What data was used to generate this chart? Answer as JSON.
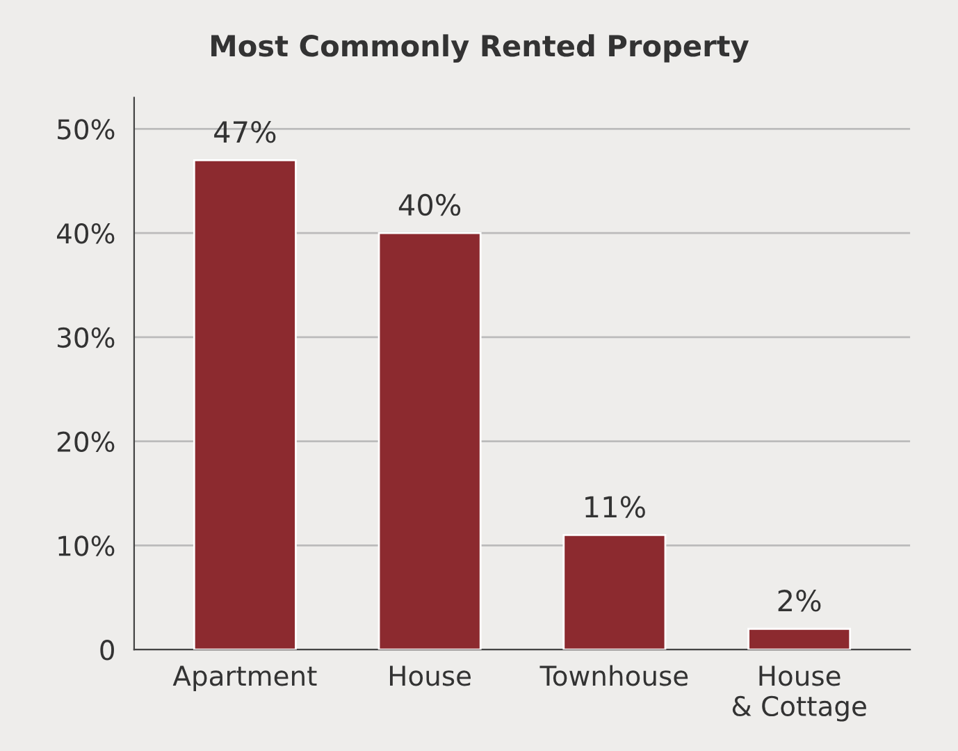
{
  "chart_data": {
    "type": "bar",
    "title": "Most Commonly Rented Property",
    "categories": [
      "Apartment",
      "House",
      "Townhouse",
      "House\n& Cottage"
    ],
    "values": [
      47,
      40,
      11,
      2
    ],
    "value_labels": [
      "47%",
      "40%",
      "11%",
      "2%"
    ],
    "color": "#8c2a2f",
    "ylim": [
      0,
      53
    ],
    "yticks": [
      {
        "value": 0,
        "label": "0"
      },
      {
        "value": 10,
        "label": "10%"
      },
      {
        "value": 20,
        "label": "20%"
      },
      {
        "value": 30,
        "label": "30%"
      },
      {
        "value": 40,
        "label": "40%"
      },
      {
        "value": 50,
        "label": "50%"
      }
    ],
    "grid": "y",
    "legend": false
  }
}
